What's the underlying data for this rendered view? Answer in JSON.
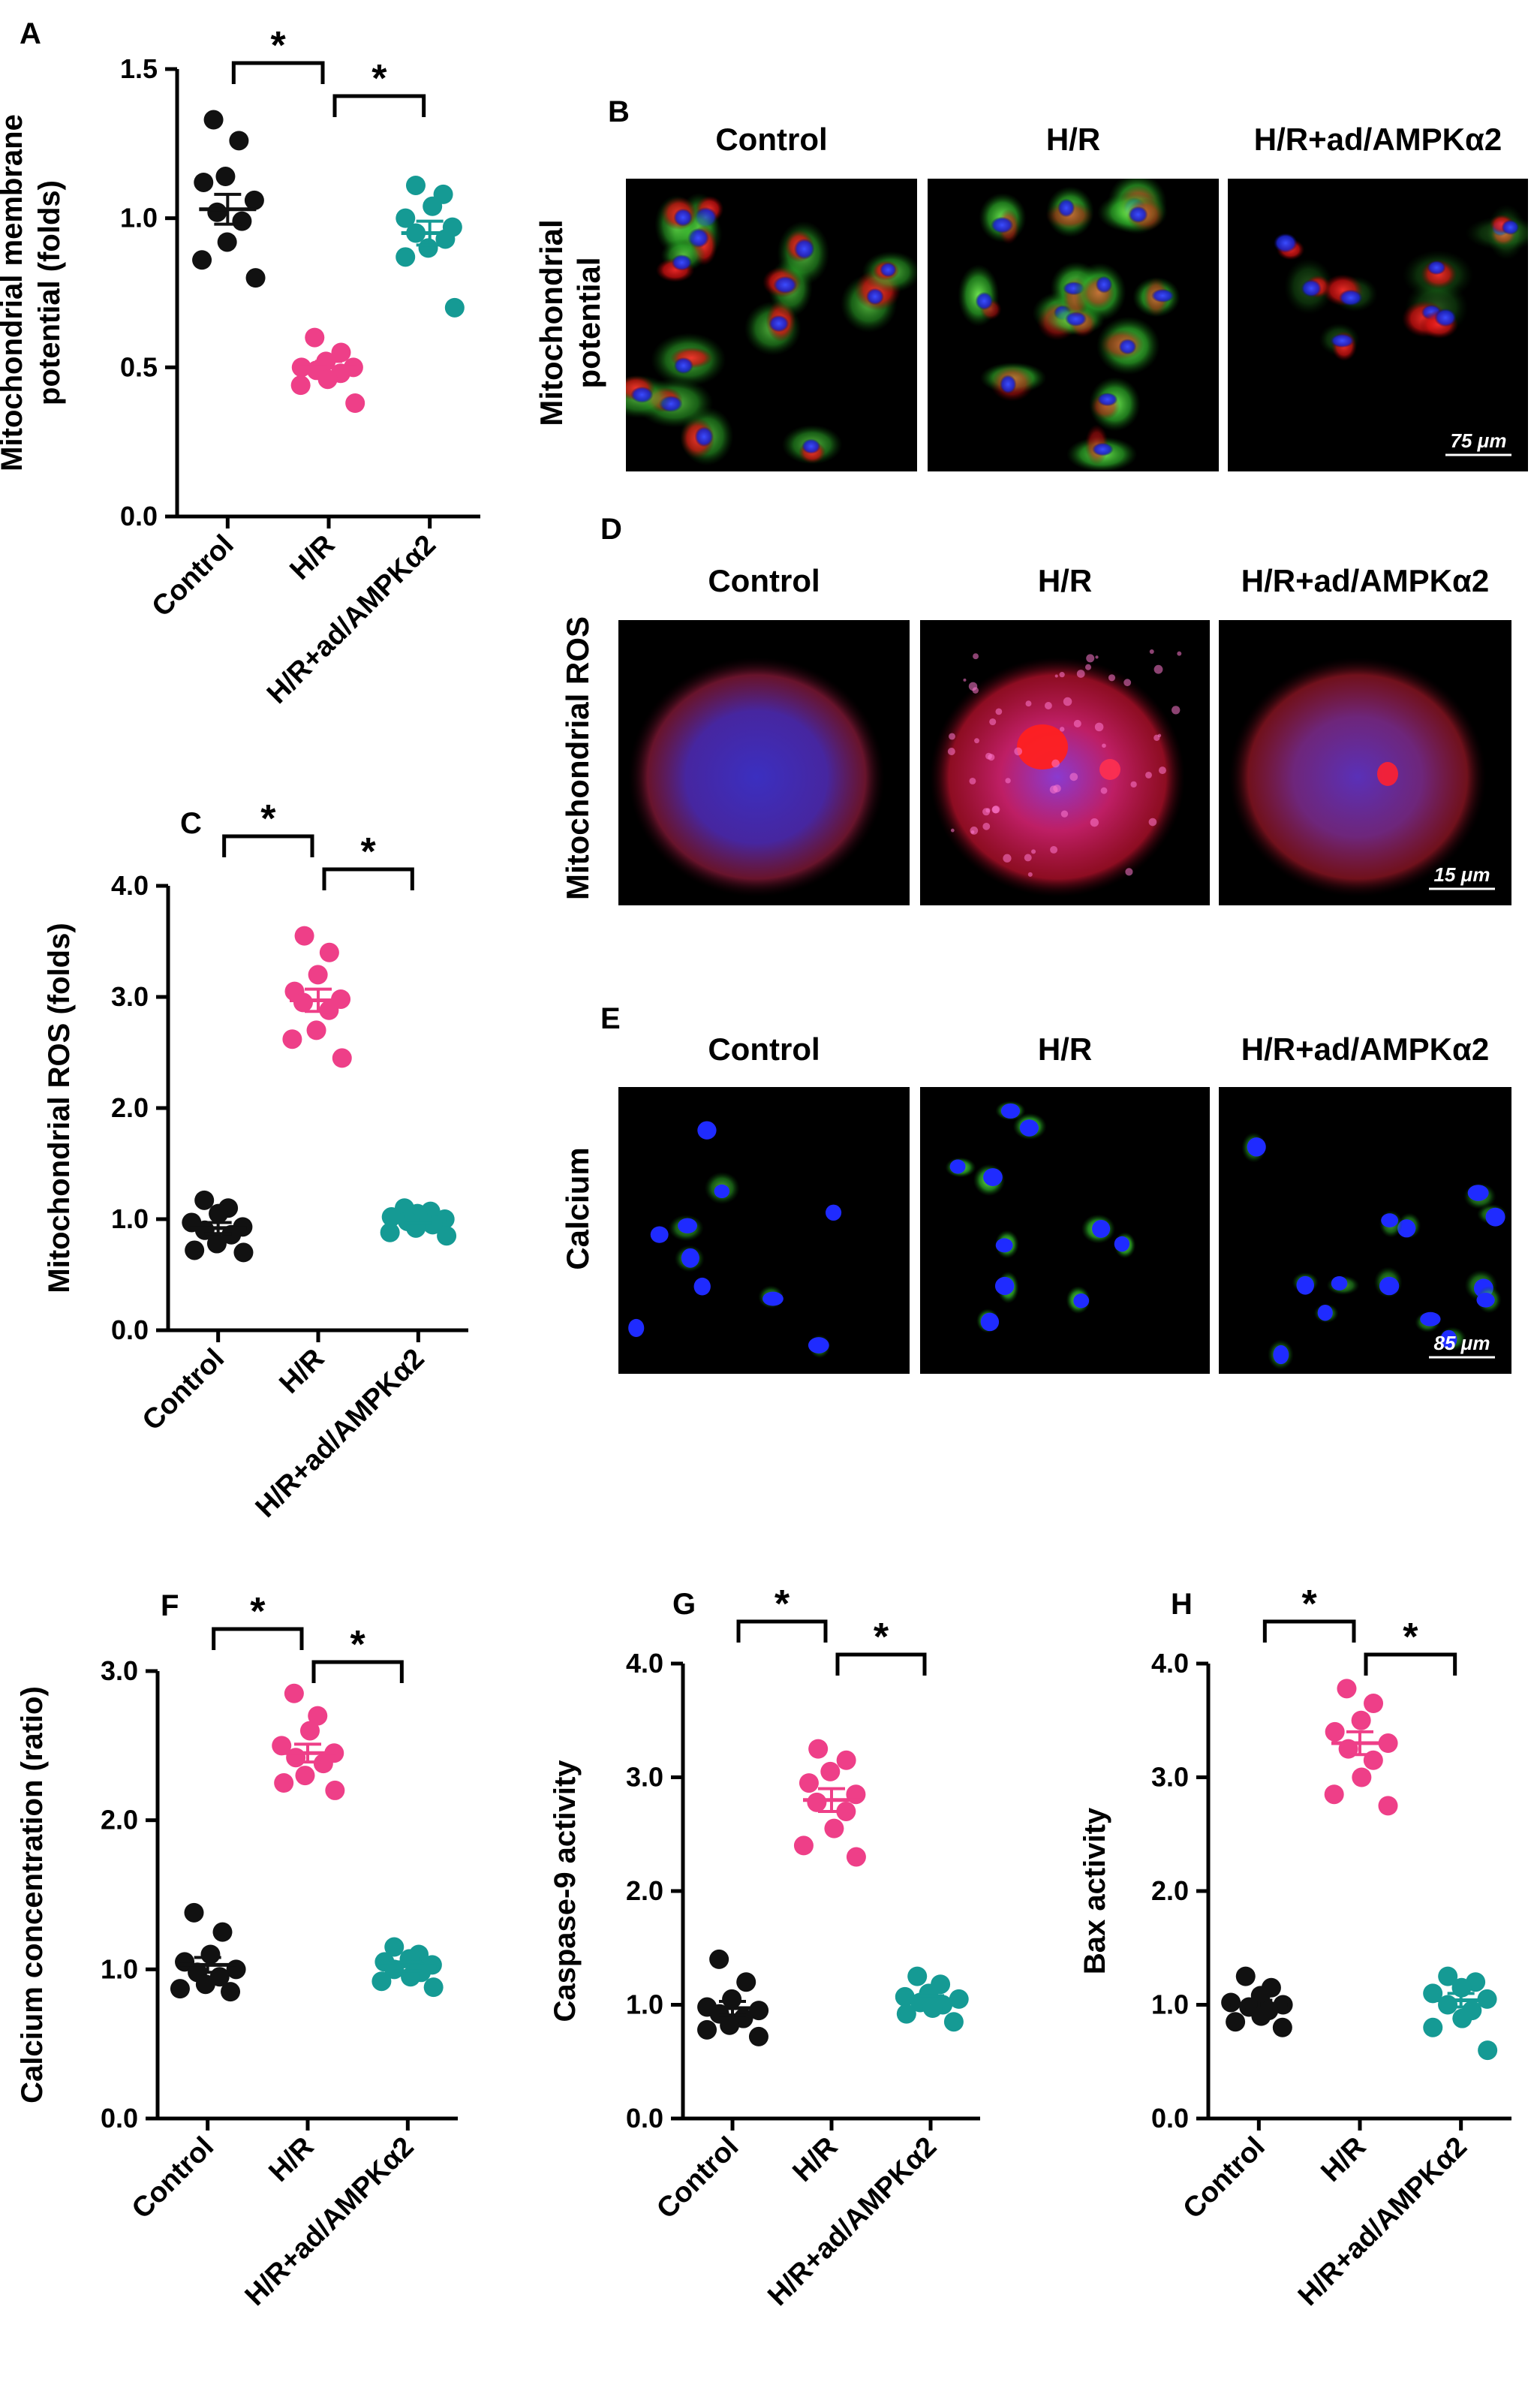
{
  "colors": {
    "control": "#111111",
    "hr": "#ee3f88",
    "ad": "#159a94"
  },
  "chart_data": [
    {
      "id": "A",
      "panel": "A",
      "type": "scatter",
      "ylabel_lines": [
        "Mitochondrial membrane",
        "potential (folds)"
      ],
      "ylim": [
        0,
        1.5
      ],
      "yticks": [
        0.0,
        0.5,
        1.0,
        1.5
      ],
      "ytick_labels": [
        "0.0",
        "0.5",
        "1.0",
        "1.5"
      ],
      "categories": [
        "Control",
        "H/R",
        "H/R+ad/AMPKα2"
      ],
      "series": [
        {
          "points": [
            1.33,
            1.26,
            1.14,
            1.12,
            1.06,
            1.02,
            0.99,
            0.92,
            0.86,
            0.8
          ],
          "mean": 1.03,
          "sem": 0.05
        },
        {
          "points": [
            0.6,
            0.55,
            0.52,
            0.5,
            0.5,
            0.49,
            0.48,
            0.46,
            0.44,
            0.38
          ],
          "mean": 0.5,
          "sem": 0.02
        },
        {
          "points": [
            1.11,
            1.08,
            1.04,
            1.0,
            0.97,
            0.95,
            0.93,
            0.9,
            0.87,
            0.7
          ],
          "mean": 0.95,
          "sem": 0.04
        }
      ],
      "significance": [
        {
          "from": 0,
          "to": 1,
          "label": "*"
        },
        {
          "from": 1,
          "to": 2,
          "label": "*"
        }
      ]
    },
    {
      "id": "C",
      "panel": "C",
      "type": "scatter",
      "ylabel_lines": [
        "Mitochondrial ROS (folds)"
      ],
      "ylim": [
        0,
        4.0
      ],
      "yticks": [
        0.0,
        1.0,
        2.0,
        3.0,
        4.0
      ],
      "ytick_labels": [
        "0.0",
        "1.0",
        "2.0",
        "3.0",
        "4.0"
      ],
      "categories": [
        "Control",
        "H/R",
        "H/R+ad/AMPKα2"
      ],
      "series": [
        {
          "points": [
            1.17,
            1.1,
            1.05,
            0.97,
            0.93,
            0.9,
            0.86,
            0.78,
            0.72,
            0.7
          ],
          "mean": 0.92,
          "sem": 0.05
        },
        {
          "points": [
            3.55,
            3.4,
            3.2,
            3.05,
            2.98,
            2.95,
            2.88,
            2.7,
            2.62,
            2.45
          ],
          "mean": 2.97,
          "sem": 0.1
        },
        {
          "points": [
            1.1,
            1.07,
            1.05,
            1.02,
            1.0,
            0.98,
            0.95,
            0.92,
            0.88,
            0.85
          ],
          "mean": 0.99,
          "sem": 0.03
        }
      ],
      "significance": [
        {
          "from": 0,
          "to": 1,
          "label": "*"
        },
        {
          "from": 1,
          "to": 2,
          "label": "*"
        }
      ]
    },
    {
      "id": "F",
      "panel": "F",
      "type": "scatter",
      "ylabel_lines": [
        "Calcium concentration (ratio)"
      ],
      "ylim": [
        0,
        3.0
      ],
      "yticks": [
        0.0,
        1.0,
        2.0,
        3.0
      ],
      "ytick_labels": [
        "0.0",
        "1.0",
        "2.0",
        "3.0"
      ],
      "categories": [
        "Control",
        "H/R",
        "H/R+ad/AMPKα2"
      ],
      "series": [
        {
          "points": [
            1.38,
            1.25,
            1.1,
            1.05,
            1.0,
            0.98,
            0.95,
            0.9,
            0.87,
            0.85
          ],
          "mean": 1.03,
          "sem": 0.05
        },
        {
          "points": [
            2.85,
            2.7,
            2.6,
            2.5,
            2.45,
            2.42,
            2.38,
            2.3,
            2.25,
            2.2
          ],
          "mean": 2.45,
          "sem": 0.06
        },
        {
          "points": [
            1.15,
            1.1,
            1.07,
            1.05,
            1.03,
            1.0,
            0.98,
            0.95,
            0.92,
            0.88
          ],
          "mean": 1.02,
          "sem": 0.03
        }
      ],
      "significance": [
        {
          "from": 0,
          "to": 1,
          "label": "*"
        },
        {
          "from": 1,
          "to": 2,
          "label": "*"
        }
      ]
    },
    {
      "id": "G",
      "panel": "G",
      "type": "scatter",
      "ylabel_lines": [
        "Caspase-9 activity"
      ],
      "ylim": [
        0,
        4.0
      ],
      "yticks": [
        0.0,
        1.0,
        2.0,
        3.0,
        4.0
      ],
      "ytick_labels": [
        "0.0",
        "1.0",
        "2.0",
        "3.0",
        "4.0"
      ],
      "categories": [
        "Control",
        "H/R",
        "H/R+ad/AMPKα2"
      ],
      "series": [
        {
          "points": [
            1.4,
            1.2,
            1.05,
            0.98,
            0.95,
            0.92,
            0.88,
            0.82,
            0.78,
            0.72
          ],
          "mean": 0.97,
          "sem": 0.06
        },
        {
          "points": [
            3.25,
            3.15,
            3.05,
            2.95,
            2.85,
            2.78,
            2.7,
            2.55,
            2.4,
            2.3
          ],
          "mean": 2.8,
          "sem": 0.1
        },
        {
          "points": [
            1.25,
            1.18,
            1.1,
            1.07,
            1.05,
            1.02,
            1.0,
            0.97,
            0.92,
            0.85
          ],
          "mean": 1.04,
          "sem": 0.04
        }
      ],
      "significance": [
        {
          "from": 0,
          "to": 1,
          "label": "*"
        },
        {
          "from": 1,
          "to": 2,
          "label": "*"
        }
      ]
    },
    {
      "id": "H",
      "panel": "H",
      "type": "scatter",
      "ylabel_lines": [
        "Bax activity"
      ],
      "ylim": [
        0,
        4.0
      ],
      "yticks": [
        0.0,
        1.0,
        2.0,
        3.0,
        4.0
      ],
      "ytick_labels": [
        "0.0",
        "1.0",
        "2.0",
        "3.0",
        "4.0"
      ],
      "categories": [
        "Control",
        "H/R",
        "H/R+ad/AMPKα2"
      ],
      "series": [
        {
          "points": [
            1.25,
            1.15,
            1.08,
            1.02,
            1.0,
            0.98,
            0.95,
            0.9,
            0.85,
            0.8
          ],
          "mean": 1.0,
          "sem": 0.04
        },
        {
          "points": [
            3.78,
            3.65,
            3.5,
            3.4,
            3.3,
            3.25,
            3.15,
            3.0,
            2.85,
            2.75
          ],
          "mean": 3.3,
          "sem": 0.1
        },
        {
          "points": [
            1.25,
            1.2,
            1.15,
            1.1,
            1.05,
            1.0,
            0.95,
            0.88,
            0.8,
            0.6
          ],
          "mean": 1.04,
          "sem": 0.06
        }
      ],
      "significance": [
        {
          "from": 0,
          "to": 1,
          "label": "*"
        },
        {
          "from": 1,
          "to": 2,
          "label": "*"
        }
      ]
    }
  ],
  "image_panels": [
    {
      "id": "B",
      "panel": "B",
      "row_title_lines": [
        "Mitochondrial",
        "potential"
      ],
      "columns": [
        "Control",
        "H/R",
        "H/R+ad/AMPKα2"
      ],
      "scale_bar": "75 μm"
    },
    {
      "id": "D",
      "panel": "D",
      "row_title_lines": [
        "Mitochondrial ROS"
      ],
      "columns": [
        "Control",
        "H/R",
        "H/R+ad/AMPKα2"
      ],
      "scale_bar": "15 μm"
    },
    {
      "id": "E",
      "panel": "E",
      "row_title_lines": [
        "Calcium"
      ],
      "columns": [
        "Control",
        "H/R",
        "H/R+ad/AMPKα2"
      ],
      "scale_bar": "85 μm"
    }
  ]
}
